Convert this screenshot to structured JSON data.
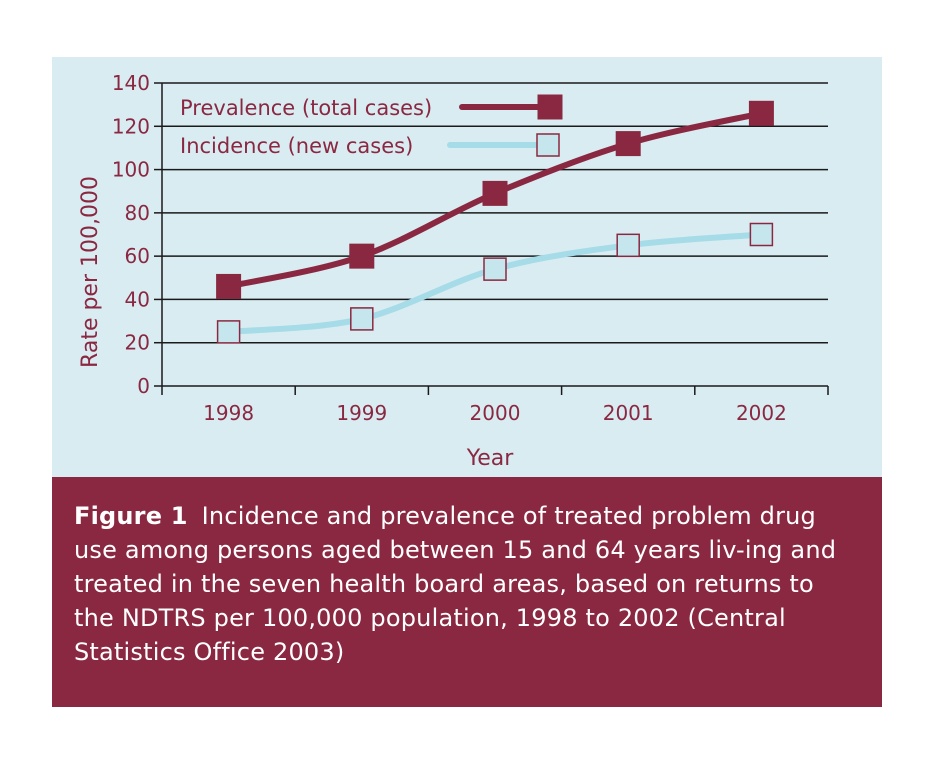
{
  "chart_data": {
    "type": "line",
    "title": "",
    "xlabel": "Year",
    "ylabel": "Rate per 100,000",
    "categories": [
      "1998",
      "1999",
      "2000",
      "2001",
      "2002"
    ],
    "ylim": [
      0,
      140
    ],
    "yticks": [
      0,
      20,
      40,
      60,
      80,
      100,
      120,
      140
    ],
    "grid": true,
    "legend_position": "top-left",
    "series": [
      {
        "name": "Prevalence (total cases)",
        "values": [
          46,
          60,
          89,
          112,
          126
        ],
        "color": "#8a2841",
        "marker": "filled-square"
      },
      {
        "name": "Incidence (new cases)",
        "values": [
          25,
          31,
          54,
          65,
          70
        ],
        "color": "#a6dbe8",
        "marker": "light-square"
      }
    ]
  },
  "caption": {
    "label": "Figure 1",
    "text": "Incidence and prevalence of treated problem drug use among persons aged between 15 and 64 years liv-ing and treated in the seven health board areas, based on returns to the NDTRS per 100,000 population, 1998 to 2002 (Central Statistics Office 2003)"
  },
  "colors": {
    "accent": "#8a2841",
    "panel_background": "#d9ecf2",
    "incidence_line": "#a6dbe8",
    "incidence_marker_fill": "#c6e6ee"
  }
}
